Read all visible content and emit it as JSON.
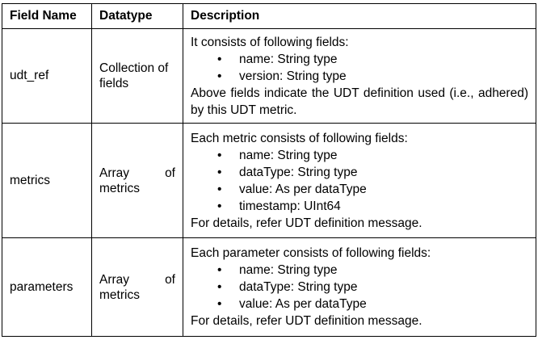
{
  "headers": [
    "Field Name",
    "Datatype",
    "Description"
  ],
  "rows": [
    {
      "field": "udt_ref",
      "datatype_line1_left": "Collection of",
      "datatype_line1_right": "",
      "datatype_line2": "fields",
      "intro": "It consists of following fields:",
      "bullets": [
        "name: String type",
        "version: String type"
      ],
      "outro": "Above fields indicate the UDT definition used (i.e., adhered) by this UDT metric."
    },
    {
      "field": "metrics",
      "datatype_line1_left": "Array",
      "datatype_line1_right": "of",
      "datatype_line2": "metrics",
      "intro": "Each metric consists of following fields:",
      "bullets": [
        "name: String type",
        "dataType: String type",
        "value: As per dataType",
        "timestamp: UInt64"
      ],
      "outro": "For details, refer UDT definition message."
    },
    {
      "field": "parameters",
      "datatype_line1_left": "Array",
      "datatype_line1_right": "of",
      "datatype_line2": "metrics",
      "intro": "Each parameter consists of following fields:",
      "bullets": [
        "name: String type",
        "dataType: String type",
        "value: As per dataType"
      ],
      "outro": "For details, refer UDT definition message."
    }
  ]
}
